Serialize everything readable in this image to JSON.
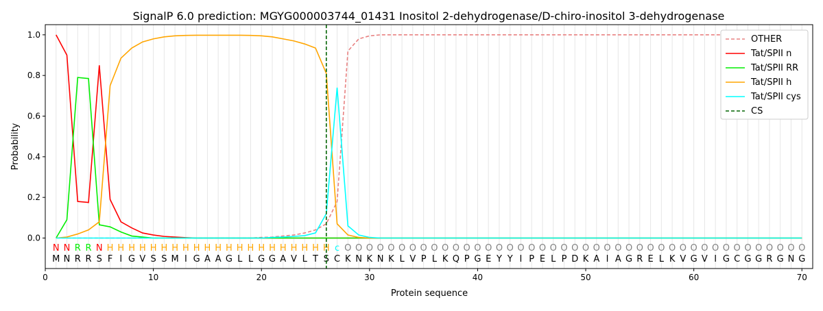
{
  "chart_data": {
    "type": "line",
    "title": "SignalP 6.0 prediction: MGYG000003744_01431 Inositol 2-dehydrogenase/D-chiro-inositol 3-dehydrogenase",
    "xlabel": "Protein sequence",
    "ylabel": "Probability",
    "xlim": [
      0,
      71
    ],
    "ylim": [
      -0.15,
      1.05
    ],
    "xticks": [
      0,
      10,
      20,
      30,
      40,
      50,
      60,
      70
    ],
    "yticks": [
      "0.0",
      "0.2",
      "0.4",
      "0.6",
      "0.8",
      "1.0"
    ],
    "legend_position": "top-right",
    "sequence": "MNRRSFIGVSSMIGAAGLLGGAVLTSCKNKNKLVPLKQPGEYYIPELPDKAIAGRELKVGVIGCGGRGNG",
    "labels": "NNRRNHHHHHHHHHHHHHHHHHHHHHcOOOOOOOOOOOOOOOOOOOOOOOOOOOOOOOOOOOOOOOOOOO",
    "label_colors": {
      "N": "#ff0000",
      "R": "#00ee00",
      "H": "#ffa500",
      "c": "#00ffff",
      "O": "#808080"
    },
    "cs_position": 26,
    "series": [
      {
        "name": "OTHER",
        "color": "#e88080",
        "dash": true,
        "values": [
          0,
          0,
          0,
          0,
          0,
          0,
          0,
          0,
          0,
          0,
          0,
          0,
          0,
          0,
          0,
          0,
          0,
          0,
          0,
          0.003,
          0.005,
          0.01,
          0.015,
          0.025,
          0.04,
          0.07,
          0.18,
          0.92,
          0.98,
          0.995,
          1,
          1,
          1,
          1,
          1,
          1,
          1,
          1,
          1,
          1,
          1,
          1,
          1,
          1,
          1,
          1,
          1,
          1,
          1,
          1,
          1,
          1,
          1,
          1,
          1,
          1,
          1,
          1,
          1,
          1,
          1,
          1,
          1,
          1,
          1,
          1,
          1,
          1,
          1,
          1
        ]
      },
      {
        "name": "Tat/SPII n",
        "color": "#ff0000",
        "values": [
          1.0,
          0.9,
          0.18,
          0.175,
          0.85,
          0.19,
          0.08,
          0.05,
          0.025,
          0.015,
          0.008,
          0.005,
          0.002,
          0,
          0,
          0,
          0,
          0,
          0,
          0,
          0,
          0,
          0,
          0,
          0,
          0,
          0,
          0,
          0,
          0,
          0,
          0,
          0,
          0,
          0,
          0,
          0,
          0,
          0,
          0,
          0,
          0,
          0,
          0,
          0,
          0,
          0,
          0,
          0,
          0,
          0,
          0,
          0,
          0,
          0,
          0,
          0,
          0,
          0,
          0,
          0,
          0,
          0,
          0,
          0,
          0,
          0,
          0,
          0,
          0
        ]
      },
      {
        "name": "Tat/SPII RR",
        "color": "#00ee00",
        "values": [
          0,
          0.09,
          0.79,
          0.785,
          0.065,
          0.055,
          0.03,
          0.01,
          0.005,
          0,
          0,
          0,
          0,
          0,
          0,
          0,
          0,
          0,
          0,
          0,
          0,
          0,
          0,
          0,
          0,
          0,
          0,
          0,
          0,
          0,
          0,
          0,
          0,
          0,
          0,
          0,
          0,
          0,
          0,
          0,
          0,
          0,
          0,
          0,
          0,
          0,
          0,
          0,
          0,
          0,
          0,
          0,
          0,
          0,
          0,
          0,
          0,
          0,
          0,
          0,
          0,
          0,
          0,
          0,
          0,
          0,
          0,
          0,
          0,
          0
        ]
      },
      {
        "name": "Tat/SPII h",
        "color": "#ffa500",
        "values": [
          0,
          0.005,
          0.02,
          0.04,
          0.08,
          0.75,
          0.885,
          0.935,
          0.965,
          0.98,
          0.99,
          0.995,
          0.997,
          0.998,
          0.998,
          0.998,
          0.998,
          0.998,
          0.997,
          0.995,
          0.99,
          0.98,
          0.97,
          0.955,
          0.935,
          0.81,
          0.07,
          0.015,
          0.003,
          0,
          0,
          0,
          0,
          0,
          0,
          0,
          0,
          0,
          0,
          0,
          0,
          0,
          0,
          0,
          0,
          0,
          0,
          0,
          0,
          0,
          0,
          0,
          0,
          0,
          0,
          0,
          0,
          0,
          0,
          0,
          0,
          0,
          0,
          0,
          0,
          0,
          0,
          0,
          0,
          0
        ]
      },
      {
        "name": "Tat/SPII cys",
        "color": "#00ffff",
        "values": [
          0,
          0,
          0,
          0,
          0,
          0,
          0,
          0,
          0,
          0,
          0,
          0,
          0,
          0,
          0,
          0,
          0,
          0,
          0,
          0,
          0.003,
          0.005,
          0.008,
          0.012,
          0.025,
          0.12,
          0.74,
          0.06,
          0.015,
          0.003,
          0,
          0,
          0,
          0,
          0,
          0,
          0,
          0,
          0,
          0,
          0,
          0,
          0,
          0,
          0,
          0,
          0,
          0,
          0,
          0,
          0,
          0,
          0,
          0,
          0,
          0,
          0,
          0,
          0,
          0,
          0,
          0,
          0,
          0,
          0,
          0,
          0,
          0,
          0,
          0
        ]
      }
    ],
    "cs_legend": "CS",
    "cs_color": "#006400"
  }
}
